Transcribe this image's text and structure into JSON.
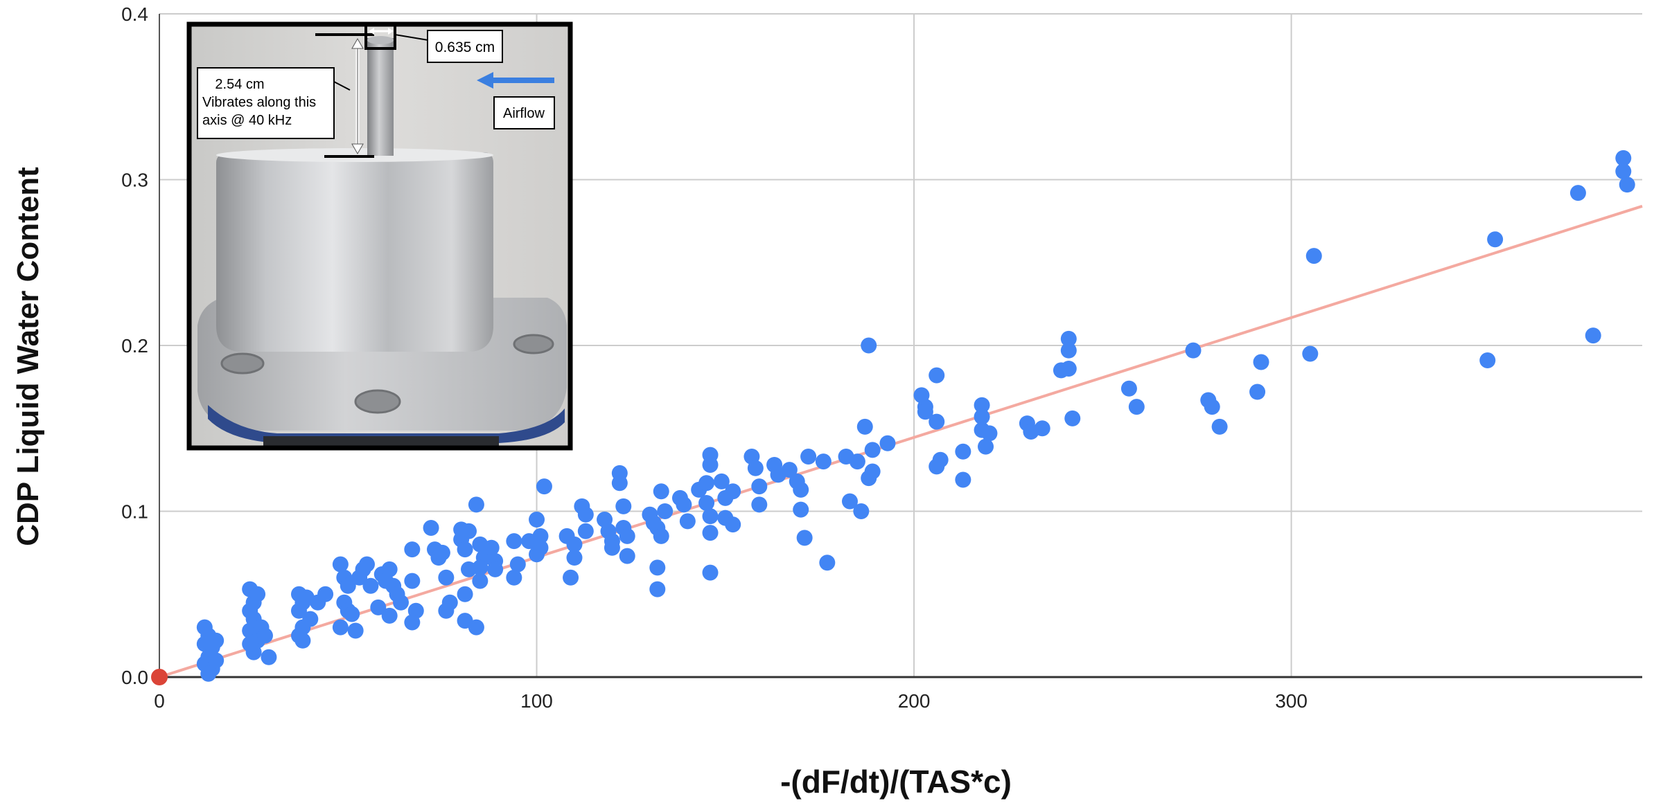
{
  "chart_data": {
    "type": "scatter",
    "title": "",
    "xlabel": "-(dF/dt)/(TAS*c)",
    "ylabel": "CDP Liquid Water Content",
    "xlim": [
      0,
      393
    ],
    "ylim": [
      0,
      0.4
    ],
    "x_ticks": [
      "0",
      "100",
      "200",
      "300"
    ],
    "y_ticks": [
      "0.0",
      "0.1",
      "0.2",
      "0.3",
      "0.4"
    ],
    "grid": true,
    "colors": {
      "points": "#4285F4",
      "trendline": "#F4A9A0",
      "origin_point": "#DB4437",
      "grid": "#cccccc"
    },
    "trendline": {
      "x": [
        0,
        393
      ],
      "y": [
        0,
        0.284
      ]
    },
    "origin_point": {
      "x": 0,
      "y": 0
    },
    "series": [
      {
        "points": [
          [
            12,
            0.03
          ],
          [
            13,
            0.025
          ],
          [
            12,
            0.02
          ],
          [
            14,
            0.018
          ],
          [
            13,
            0.012
          ],
          [
            12,
            0.008
          ],
          [
            14,
            0.005
          ],
          [
            15,
            0.022
          ],
          [
            15,
            0.01
          ],
          [
            13,
            0.002
          ],
          [
            24,
            0.053
          ],
          [
            25,
            0.045
          ],
          [
            24,
            0.04
          ],
          [
            26,
            0.05
          ],
          [
            25,
            0.035
          ],
          [
            24,
            0.028
          ],
          [
            26,
            0.022
          ],
          [
            25,
            0.015
          ],
          [
            27,
            0.03
          ],
          [
            28,
            0.025
          ],
          [
            29,
            0.012
          ],
          [
            24,
            0.02
          ],
          [
            37,
            0.05
          ],
          [
            38,
            0.045
          ],
          [
            37,
            0.04
          ],
          [
            38,
            0.03
          ],
          [
            37,
            0.025
          ],
          [
            39,
            0.048
          ],
          [
            38,
            0.022
          ],
          [
            40,
            0.035
          ],
          [
            42,
            0.045
          ],
          [
            44,
            0.05
          ],
          [
            48,
            0.068
          ],
          [
            49,
            0.06
          ],
          [
            50,
            0.055
          ],
          [
            49,
            0.045
          ],
          [
            50,
            0.04
          ],
          [
            48,
            0.03
          ],
          [
            51,
            0.038
          ],
          [
            52,
            0.028
          ],
          [
            53,
            0.06
          ],
          [
            54,
            0.065
          ],
          [
            55,
            0.068
          ],
          [
            56,
            0.055
          ],
          [
            58,
            0.042
          ],
          [
            59,
            0.062
          ],
          [
            60,
            0.058
          ],
          [
            61,
            0.065
          ],
          [
            62,
            0.055
          ],
          [
            63,
            0.05
          ],
          [
            64,
            0.045
          ],
          [
            61,
            0.037
          ],
          [
            67,
            0.077
          ],
          [
            67,
            0.058
          ],
          [
            68,
            0.04
          ],
          [
            67,
            0.033
          ],
          [
            72,
            0.09
          ],
          [
            73,
            0.077
          ],
          [
            74,
            0.072
          ],
          [
            75,
            0.075
          ],
          [
            76,
            0.06
          ],
          [
            77,
            0.045
          ],
          [
            76,
            0.04
          ],
          [
            80,
            0.089
          ],
          [
            80,
            0.083
          ],
          [
            81,
            0.077
          ],
          [
            82,
            0.088
          ],
          [
            82,
            0.065
          ],
          [
            81,
            0.05
          ],
          [
            81,
            0.034
          ],
          [
            84,
            0.104
          ],
          [
            85,
            0.08
          ],
          [
            86,
            0.072
          ],
          [
            85,
            0.066
          ],
          [
            85,
            0.058
          ],
          [
            84,
            0.03
          ],
          [
            88,
            0.078
          ],
          [
            89,
            0.07
          ],
          [
            89,
            0.065
          ],
          [
            94,
            0.082
          ],
          [
            95,
            0.068
          ],
          [
            94,
            0.06
          ],
          [
            98,
            0.082
          ],
          [
            100,
            0.095
          ],
          [
            101,
            0.085
          ],
          [
            101,
            0.078
          ],
          [
            100,
            0.074
          ],
          [
            102,
            0.115
          ],
          [
            108,
            0.085
          ],
          [
            110,
            0.08
          ],
          [
            110,
            0.072
          ],
          [
            109,
            0.06
          ],
          [
            112,
            0.103
          ],
          [
            113,
            0.098
          ],
          [
            113,
            0.088
          ],
          [
            118,
            0.095
          ],
          [
            119,
            0.088
          ],
          [
            120,
            0.082
          ],
          [
            120,
            0.078
          ],
          [
            122,
            0.123
          ],
          [
            122,
            0.117
          ],
          [
            123,
            0.103
          ],
          [
            123,
            0.09
          ],
          [
            124,
            0.085
          ],
          [
            124,
            0.073
          ],
          [
            130,
            0.098
          ],
          [
            131,
            0.093
          ],
          [
            132,
            0.09
          ],
          [
            133,
            0.112
          ],
          [
            134,
            0.1
          ],
          [
            133,
            0.085
          ],
          [
            132,
            0.066
          ],
          [
            132,
            0.053
          ],
          [
            138,
            0.108
          ],
          [
            139,
            0.104
          ],
          [
            140,
            0.094
          ],
          [
            143,
            0.113
          ],
          [
            145,
            0.117
          ],
          [
            145,
            0.105
          ],
          [
            146,
            0.134
          ],
          [
            146,
            0.128
          ],
          [
            146,
            0.097
          ],
          [
            146,
            0.087
          ],
          [
            146,
            0.063
          ],
          [
            149,
            0.118
          ],
          [
            150,
            0.108
          ],
          [
            150,
            0.096
          ],
          [
            152,
            0.112
          ],
          [
            152,
            0.092
          ],
          [
            157,
            0.133
          ],
          [
            158,
            0.126
          ],
          [
            159,
            0.115
          ],
          [
            159,
            0.104
          ],
          [
            163,
            0.128
          ],
          [
            164,
            0.122
          ],
          [
            167,
            0.125
          ],
          [
            169,
            0.118
          ],
          [
            170,
            0.113
          ],
          [
            170,
            0.101
          ],
          [
            171,
            0.084
          ],
          [
            172,
            0.133
          ],
          [
            176,
            0.13
          ],
          [
            177,
            0.069
          ],
          [
            182,
            0.133
          ],
          [
            183,
            0.106
          ],
          [
            185,
            0.13
          ],
          [
            186,
            0.1
          ],
          [
            187,
            0.151
          ],
          [
            188,
            0.2
          ],
          [
            188,
            0.12
          ],
          [
            189,
            0.137
          ],
          [
            189,
            0.124
          ],
          [
            193,
            0.141
          ],
          [
            202,
            0.17
          ],
          [
            203,
            0.163
          ],
          [
            203,
            0.16
          ],
          [
            206,
            0.182
          ],
          [
            206,
            0.154
          ],
          [
            206,
            0.127
          ],
          [
            207,
            0.131
          ],
          [
            213,
            0.136
          ],
          [
            213,
            0.119
          ],
          [
            218,
            0.164
          ],
          [
            218,
            0.157
          ],
          [
            218,
            0.149
          ],
          [
            219,
            0.139
          ],
          [
            220,
            0.147
          ],
          [
            230,
            0.153
          ],
          [
            231,
            0.148
          ],
          [
            234,
            0.15
          ],
          [
            239,
            0.185
          ],
          [
            241,
            0.204
          ],
          [
            241,
            0.197
          ],
          [
            241,
            0.186
          ],
          [
            242,
            0.156
          ],
          [
            257,
            0.174
          ],
          [
            259,
            0.163
          ],
          [
            274,
            0.197
          ],
          [
            278,
            0.167
          ],
          [
            279,
            0.163
          ],
          [
            281,
            0.151
          ],
          [
            291,
            0.172
          ],
          [
            292,
            0.19
          ],
          [
            305,
            0.195
          ],
          [
            306,
            0.254
          ],
          [
            352,
            0.191
          ],
          [
            354,
            0.264
          ],
          [
            376,
            0.292
          ],
          [
            380,
            0.206
          ],
          [
            388,
            0.313
          ],
          [
            388,
            0.305
          ],
          [
            389,
            0.297
          ]
        ]
      }
    ]
  },
  "inset": {
    "labels": {
      "diameter": "0.635 cm",
      "length_line1": "2.54 cm",
      "length_line2": "Vibrates along this",
      "length_line3": "axis @ 40 kHz",
      "airflow": "Airflow"
    },
    "colors": {
      "frame": "#000000",
      "airflow_arrow": "#3b7fe0"
    }
  }
}
